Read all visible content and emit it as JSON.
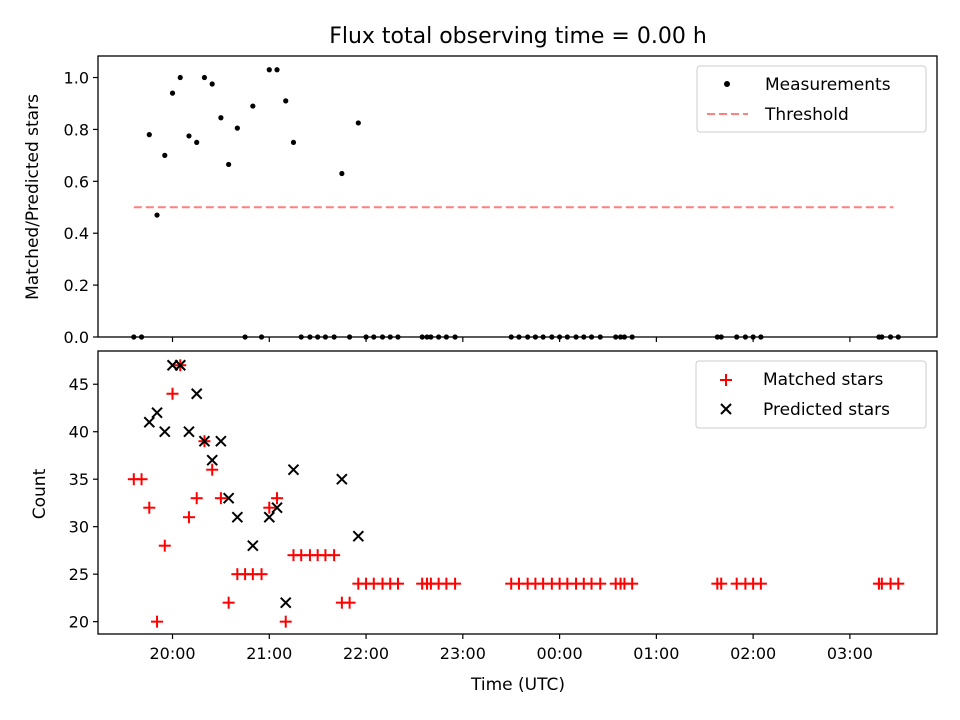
{
  "title": "Flux total observing time = 0.00 h",
  "colors": {
    "measurement": "#000000",
    "threshold": "#ff7f7f",
    "matched": "#ff0000",
    "predicted": "#000000",
    "axes": "#000000",
    "background": "#ffffff"
  },
  "chart_data": [
    {
      "type": "scatter",
      "ylabel": "Matched/Predicted stars",
      "xlabel": "",
      "ylim": [
        0,
        1.083
      ],
      "xlim_hours": [
        19.23,
        27.9
      ],
      "yticks": [
        0.0,
        0.2,
        0.4,
        0.6,
        0.8,
        1.0
      ],
      "ytick_labels": [
        "0.0",
        "0.2",
        "0.4",
        "0.6",
        "0.8",
        "1.0"
      ],
      "legend": [
        {
          "label": "Measurements",
          "marker": "dot"
        },
        {
          "label": "Threshold",
          "marker": "dash"
        }
      ],
      "legend_position": "top-right",
      "threshold": {
        "value": 0.5,
        "x_range": [
          19.6,
          27.45
        ]
      },
      "series": [
        {
          "name": "Measurements",
          "x": [
            19.6,
            19.68,
            19.76,
            19.84,
            19.92,
            20.0,
            20.08,
            20.17,
            20.25,
            20.33,
            20.41,
            20.5,
            20.58,
            20.67,
            20.75,
            20.83,
            20.92,
            21.0,
            21.08,
            21.17,
            21.25,
            21.33,
            21.42,
            21.5,
            21.58,
            21.67,
            21.75,
            21.83,
            21.92,
            22.0,
            22.08,
            22.17,
            22.25,
            22.33,
            22.58,
            22.63,
            22.67,
            22.75,
            22.83,
            22.92,
            23.5,
            23.58,
            23.67,
            23.75,
            23.83,
            23.92,
            24.0,
            24.08,
            24.17,
            24.25,
            24.33,
            24.42,
            24.58,
            24.63,
            24.67,
            24.75,
            25.63,
            25.67,
            25.83,
            25.92,
            26.0,
            26.08,
            27.3,
            27.33,
            27.42,
            27.5
          ],
          "values": [
            0.0,
            0.0,
            0.78,
            0.47,
            0.7,
            0.94,
            1.0,
            0.775,
            0.75,
            1.0,
            0.975,
            0.845,
            0.665,
            0.805,
            0.0,
            0.89,
            0.0,
            1.03,
            1.03,
            0.91,
            0.75,
            0.0,
            0.0,
            0.0,
            0.0,
            0.0,
            0.63,
            0.0,
            0.825,
            0.0,
            0.0,
            0.0,
            0.0,
            0.0,
            0.0,
            0.0,
            0.0,
            0.0,
            0.0,
            0.0,
            0.0,
            0.0,
            0.0,
            0.0,
            0.0,
            0.0,
            0.0,
            0.0,
            0.0,
            0.0,
            0.0,
            0.0,
            0.0,
            0.0,
            0.0,
            0.0,
            0.0,
            0.0,
            0.0,
            0.0,
            0.0,
            0.0,
            0.0,
            0.0,
            0.0,
            0.0
          ]
        }
      ]
    },
    {
      "type": "scatter",
      "ylabel": "Count",
      "xlabel": "Time (UTC)",
      "ylim": [
        18.7,
        48.5
      ],
      "xlim_hours": [
        19.23,
        27.9
      ],
      "yticks": [
        20,
        25,
        30,
        35,
        40,
        45
      ],
      "ytick_labels": [
        "20",
        "25",
        "30",
        "35",
        "40",
        "45"
      ],
      "xticks_hours": [
        20,
        21,
        22,
        23,
        24,
        25,
        26,
        27
      ],
      "xtick_labels": [
        "20:00",
        "21:00",
        "22:00",
        "23:00",
        "00:00",
        "01:00",
        "02:00",
        "03:00"
      ],
      "legend": [
        {
          "label": "Matched stars",
          "marker": "plus"
        },
        {
          "label": "Predicted stars",
          "marker": "x"
        }
      ],
      "legend_position": "top-right",
      "series": [
        {
          "name": "Matched stars",
          "x": [
            19.6,
            19.68,
            19.76,
            19.84,
            19.92,
            20.0,
            20.08,
            20.17,
            20.25,
            20.33,
            20.41,
            20.5,
            20.58,
            20.67,
            20.75,
            20.83,
            20.92,
            21.0,
            21.08,
            21.17,
            21.25,
            21.33,
            21.42,
            21.5,
            21.58,
            21.67,
            21.75,
            21.83,
            21.92,
            22.0,
            22.08,
            22.17,
            22.25,
            22.33,
            22.58,
            22.63,
            22.67,
            22.75,
            22.83,
            22.92,
            23.5,
            23.58,
            23.67,
            23.75,
            23.83,
            23.92,
            24.0,
            24.08,
            24.17,
            24.25,
            24.33,
            24.42,
            24.58,
            24.63,
            24.67,
            24.75,
            25.63,
            25.67,
            25.83,
            25.92,
            26.0,
            26.08,
            27.3,
            27.33,
            27.42,
            27.5
          ],
          "values": [
            35,
            35,
            32,
            20,
            28,
            44,
            47,
            31,
            33,
            39,
            36,
            33,
            22,
            25,
            25,
            25,
            25,
            32,
            33,
            20,
            27,
            27,
            27,
            27,
            27,
            27,
            22,
            22,
            24,
            24,
            24,
            24,
            24,
            24,
            24,
            24,
            24,
            24,
            24,
            24,
            24,
            24,
            24,
            24,
            24,
            24,
            24,
            24,
            24,
            24,
            24,
            24,
            24,
            24,
            24,
            24,
            24,
            24,
            24,
            24,
            24,
            24,
            24,
            24,
            24,
            24
          ]
        },
        {
          "name": "Predicted stars",
          "x": [
            19.76,
            19.84,
            19.92,
            20.0,
            20.08,
            20.17,
            20.25,
            20.33,
            20.41,
            20.5,
            20.58,
            20.67,
            20.83,
            21.0,
            21.08,
            21.17,
            21.25,
            21.75,
            21.92
          ],
          "values": [
            41,
            42,
            40,
            47,
            47,
            40,
            44,
            39,
            37,
            39,
            33,
            31,
            28,
            31,
            32,
            22,
            36,
            35,
            29
          ]
        }
      ]
    }
  ]
}
